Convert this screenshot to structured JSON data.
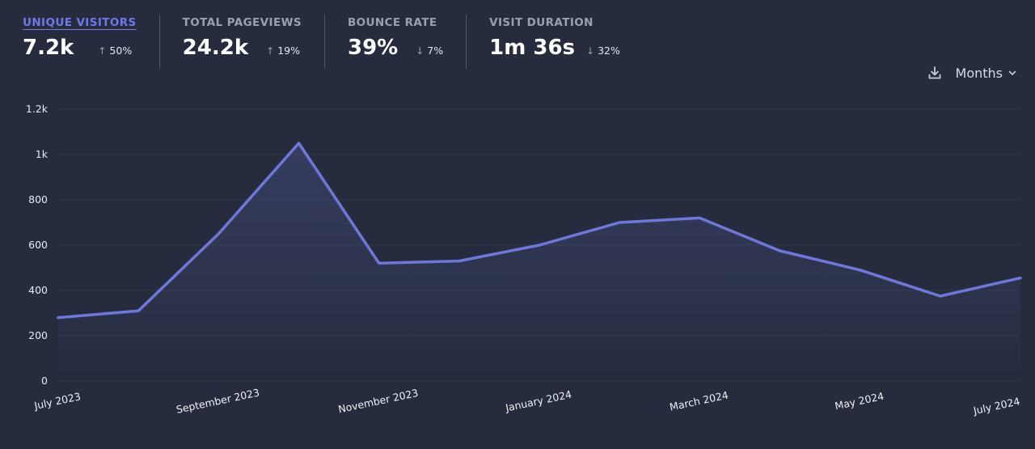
{
  "metrics": [
    {
      "label": "UNIQUE VISITORS",
      "value": "7.2k",
      "change": "50%",
      "direction": "up",
      "active": true
    },
    {
      "label": "TOTAL PAGEVIEWS",
      "value": "24.2k",
      "change": "19%",
      "direction": "up",
      "active": false
    },
    {
      "label": "BOUNCE RATE",
      "value": "39%",
      "change": "7%",
      "direction": "down",
      "active": false
    },
    {
      "label": "VISIT DURATION",
      "value": "1m 36s",
      "change": "32%",
      "direction": "down",
      "active": false
    }
  ],
  "controls": {
    "download_icon": "download-icon",
    "interval_label": "Months",
    "interval_icon": "chevron-down-icon"
  },
  "colors": {
    "background": "#262c3e",
    "line": "#6f78d8",
    "grid": "#30374a",
    "active_metric": "#6f78e6"
  },
  "chart_data": {
    "type": "area",
    "x": [
      "July 2023",
      "August 2023",
      "September 2023",
      "October 2023",
      "November 2023",
      "December 2023",
      "January 2024",
      "February 2024",
      "March 2024",
      "April 2024",
      "May 2024",
      "June 2024",
      "July 2024"
    ],
    "x_tick_labels": [
      "July 2023",
      "September 2023",
      "November 2023",
      "January 2024",
      "March 2024",
      "May 2024",
      "July 2024"
    ],
    "series": [
      {
        "values": [
          280,
          310,
          650,
          1050,
          520,
          530,
          600,
          700,
          720,
          575,
          490,
          375,
          455
        ]
      }
    ],
    "y_ticks": [
      0,
      200,
      400,
      600,
      800,
      1000,
      1200
    ],
    "y_tick_labels": [
      "0",
      "200",
      "400",
      "600",
      "800",
      "1k",
      "1.2k"
    ],
    "ylim": [
      0,
      1200
    ],
    "grid": true,
    "legend": "none"
  }
}
